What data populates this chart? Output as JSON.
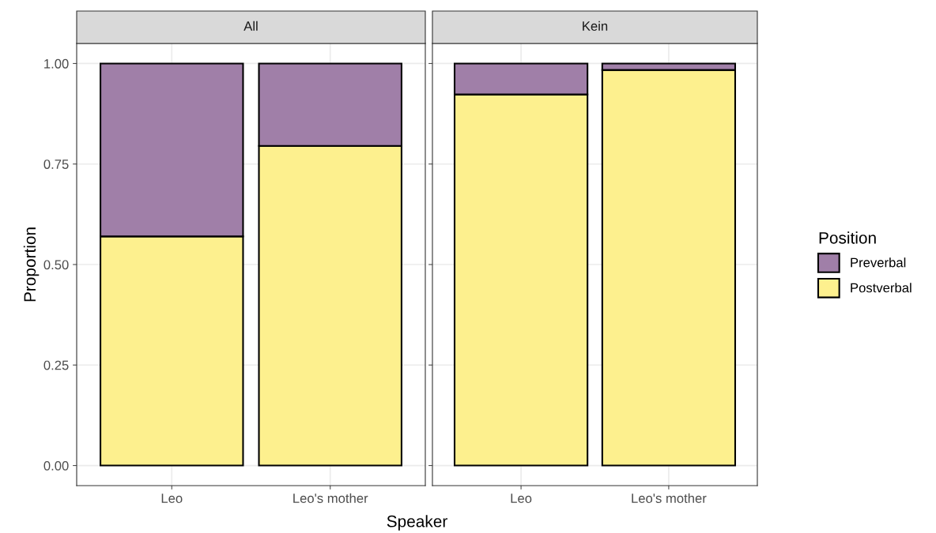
{
  "chart_data": [
    {
      "type": "bar",
      "title": "All",
      "xlabel": "Speaker",
      "ylabel": "Proportion",
      "categories": [
        "Leo",
        "Leo's mother"
      ],
      "stacked": true,
      "series": [
        {
          "name": "Postverbal",
          "color": "#fdf08e",
          "values": [
            0.57,
            0.795
          ]
        },
        {
          "name": "Preverbal",
          "color": "#a07fa8",
          "values": [
            0.43,
            0.205
          ]
        }
      ],
      "ylim": [
        -0.05,
        1.05
      ],
      "yticks": [
        {
          "value": 0,
          "label": "0.00"
        },
        {
          "value": 0.25,
          "label": "0.25"
        },
        {
          "value": 0.5,
          "label": "0.50"
        },
        {
          "value": 0.75,
          "label": "0.75"
        },
        {
          "value": 1,
          "label": "1.00"
        }
      ],
      "grid": true,
      "legend": "right",
      "legend_title": "Position"
    },
    {
      "type": "bar",
      "title": "Kein",
      "categories": [
        "Leo",
        "Leo's mother"
      ],
      "stacked": true,
      "series": [
        {
          "color": "#fdf08e",
          "values": [
            0.923,
            0.984
          ]
        },
        {
          "color": "#a07fa8",
          "values": [
            0.077,
            0.016
          ]
        }
      ],
      "ylim": [
        -0.05,
        1.05
      ],
      "yticks": [
        {
          "value": 0,
          "label": null
        },
        {
          "value": 0.25,
          "label": null
        },
        {
          "value": 0.5,
          "label": null
        },
        {
          "value": 0.75,
          "label": null
        },
        {
          "value": 1,
          "label": null
        }
      ],
      "grid": true,
      "tick_labels": "x"
    }
  ]
}
